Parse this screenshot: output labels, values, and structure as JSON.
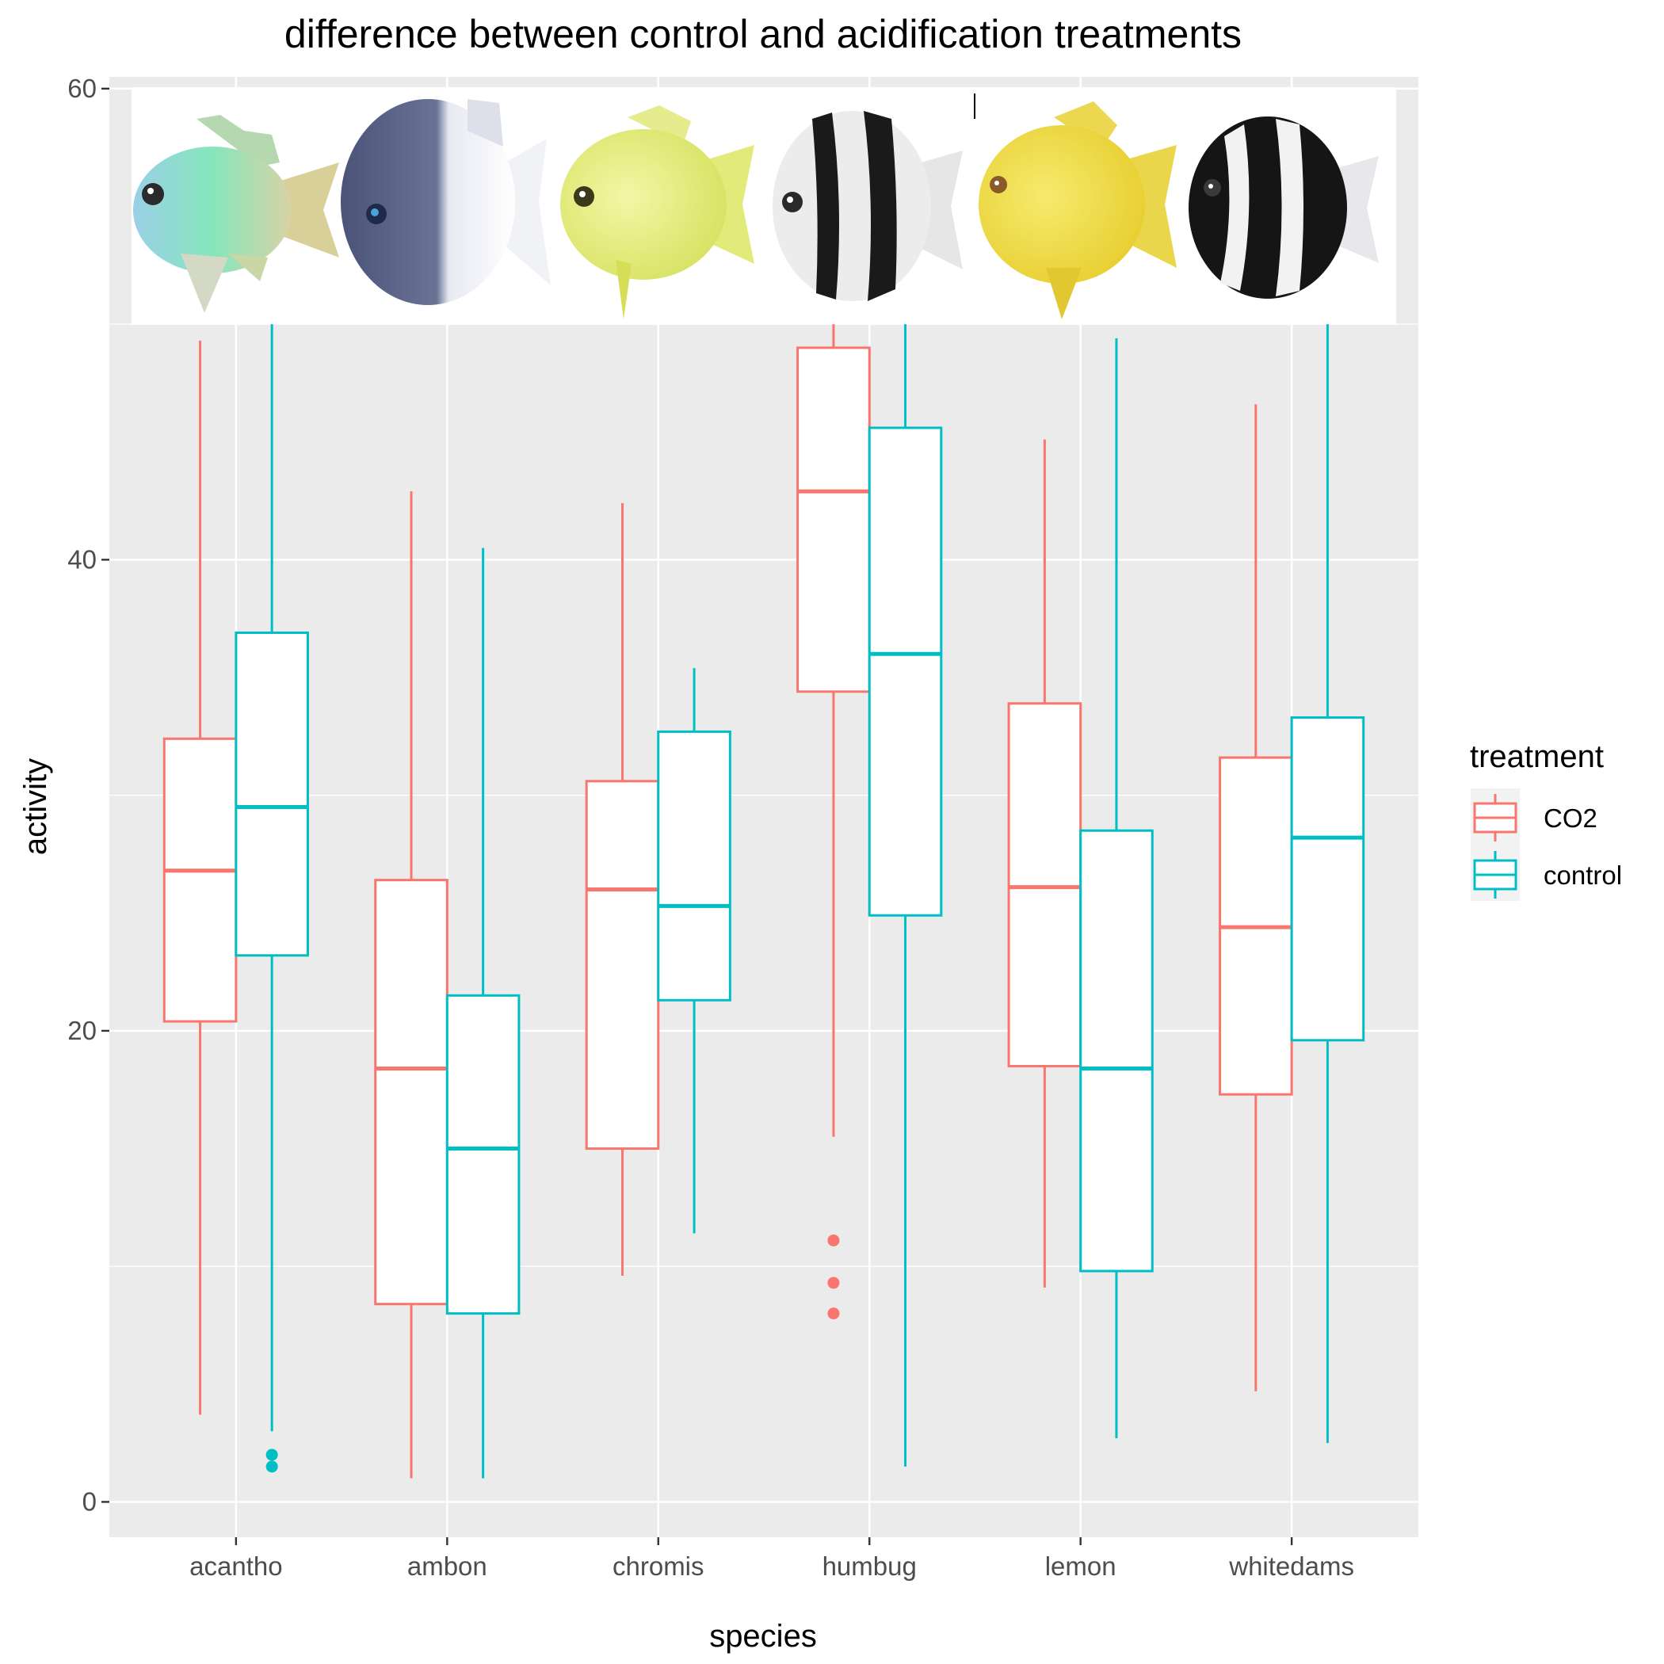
{
  "chart_data": {
    "type": "boxplot",
    "title": "difference between control and acidification treatments",
    "xlabel": "species",
    "ylabel": "activity",
    "ylim": [
      -1.5,
      60.5
    ],
    "y_ticks": [
      0,
      20,
      40,
      60
    ],
    "grid": true,
    "categories": [
      "acantho",
      "ambon",
      "chromis",
      "humbug",
      "lemon",
      "whitedams"
    ],
    "legend": {
      "title": "treatment",
      "placement": "right",
      "entries": [
        "CO2",
        "control"
      ]
    },
    "colors": {
      "CO2": "#f8766d",
      "control": "#00bfc4",
      "panel": "#ebebeb"
    },
    "series": [
      {
        "name": "CO2",
        "boxes": [
          {
            "low": 3.7,
            "q1": 20.4,
            "median": 26.8,
            "q3": 32.4,
            "high": 49.3,
            "outliers": []
          },
          {
            "low": 1.0,
            "q1": 8.4,
            "median": 18.4,
            "q3": 26.4,
            "high": 42.9,
            "outliers": []
          },
          {
            "low": 9.6,
            "q1": 15.0,
            "median": 26.0,
            "q3": 30.6,
            "high": 42.4,
            "outliers": []
          },
          {
            "low": 15.5,
            "q1": 34.4,
            "median": 42.9,
            "q3": 49.0,
            "high": 50.0,
            "outliers": [
              11.1,
              9.3,
              8.0
            ]
          },
          {
            "low": 9.1,
            "q1": 18.5,
            "median": 26.1,
            "q3": 33.9,
            "high": 45.1,
            "outliers": []
          },
          {
            "low": 4.7,
            "q1": 17.3,
            "median": 24.4,
            "q3": 31.6,
            "high": 46.6,
            "outliers": []
          }
        ]
      },
      {
        "name": "control",
        "boxes": [
          {
            "low": 3.0,
            "q1": 23.2,
            "median": 29.5,
            "q3": 36.9,
            "high": 50.0,
            "outliers": [
              2.0,
              1.5
            ]
          },
          {
            "low": 1.0,
            "q1": 8.0,
            "median": 15.0,
            "q3": 21.5,
            "high": 40.5,
            "outliers": []
          },
          {
            "low": 11.4,
            "q1": 21.3,
            "median": 25.3,
            "q3": 32.7,
            "high": 35.4,
            "outliers": []
          },
          {
            "low": 1.5,
            "q1": 24.9,
            "median": 36.0,
            "q3": 45.6,
            "high": 50.0,
            "outliers": []
          },
          {
            "low": 2.7,
            "q1": 9.8,
            "median": 18.4,
            "q3": 28.5,
            "high": 49.4,
            "outliers": []
          },
          {
            "low": 2.5,
            "q1": 19.6,
            "median": 28.2,
            "q3": 33.3,
            "high": 50.0,
            "outliers": []
          }
        ]
      }
    ]
  },
  "images": {
    "fish": [
      {
        "species": "acantho",
        "style": "green-blue"
      },
      {
        "species": "ambon",
        "style": "dark-blue-white"
      },
      {
        "species": "chromis",
        "style": "yellow"
      },
      {
        "species": "humbug",
        "style": "white-black-bars"
      },
      {
        "species": "lemon",
        "style": "lemon-yellow"
      },
      {
        "species": "whitedams",
        "style": "black-white-bars"
      }
    ]
  }
}
